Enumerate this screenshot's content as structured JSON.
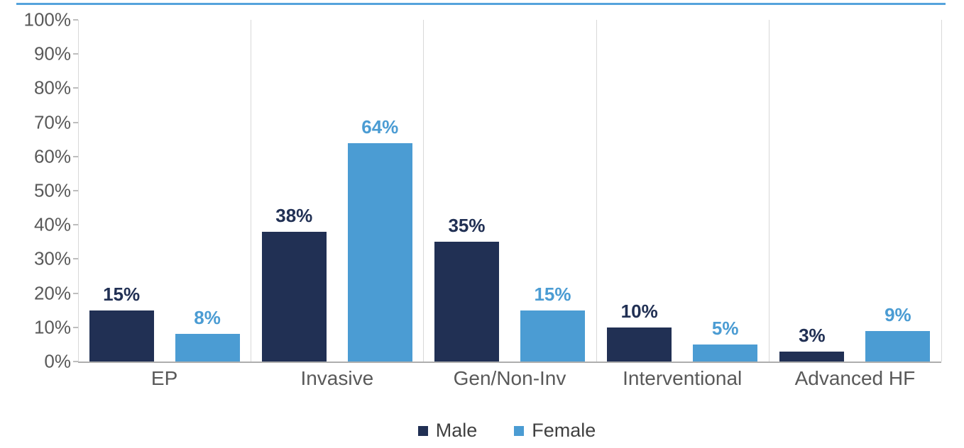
{
  "page": {
    "background": "#ffffff",
    "accent_line_color": "#55a3dc"
  },
  "chart_data": {
    "type": "bar",
    "title": "",
    "categories": [
      "EP",
      "Invasive",
      "Gen/Non-Inv",
      "Interventional",
      "Advanced HF"
    ],
    "series": [
      {
        "name": "Male",
        "color": "#213054",
        "values": [
          15,
          38,
          35,
          10,
          3
        ],
        "labels": [
          "15%",
          "38%",
          "35%",
          "10%",
          "3%"
        ]
      },
      {
        "name": "Female",
        "color": "#4b9cd3",
        "values": [
          8,
          64,
          15,
          5,
          9
        ],
        "labels": [
          "8%",
          "64%",
          "15%",
          "5%",
          "9%"
        ]
      }
    ],
    "y_axis": {
      "min": 0,
      "max": 100,
      "step": 10,
      "tick_labels": [
        "0%",
        "10%",
        "20%",
        "30%",
        "40%",
        "50%",
        "60%",
        "70%",
        "80%",
        "90%",
        "100%"
      ]
    },
    "x_axis_label": "",
    "y_axis_label": "",
    "grid": {
      "vertical": true,
      "horizontal": false,
      "color": "#d8d8d8"
    },
    "data_labels_shown": true,
    "legend_position": "bottom-center",
    "axis_text_color": "#595959",
    "legend_text_color": "#404040"
  }
}
